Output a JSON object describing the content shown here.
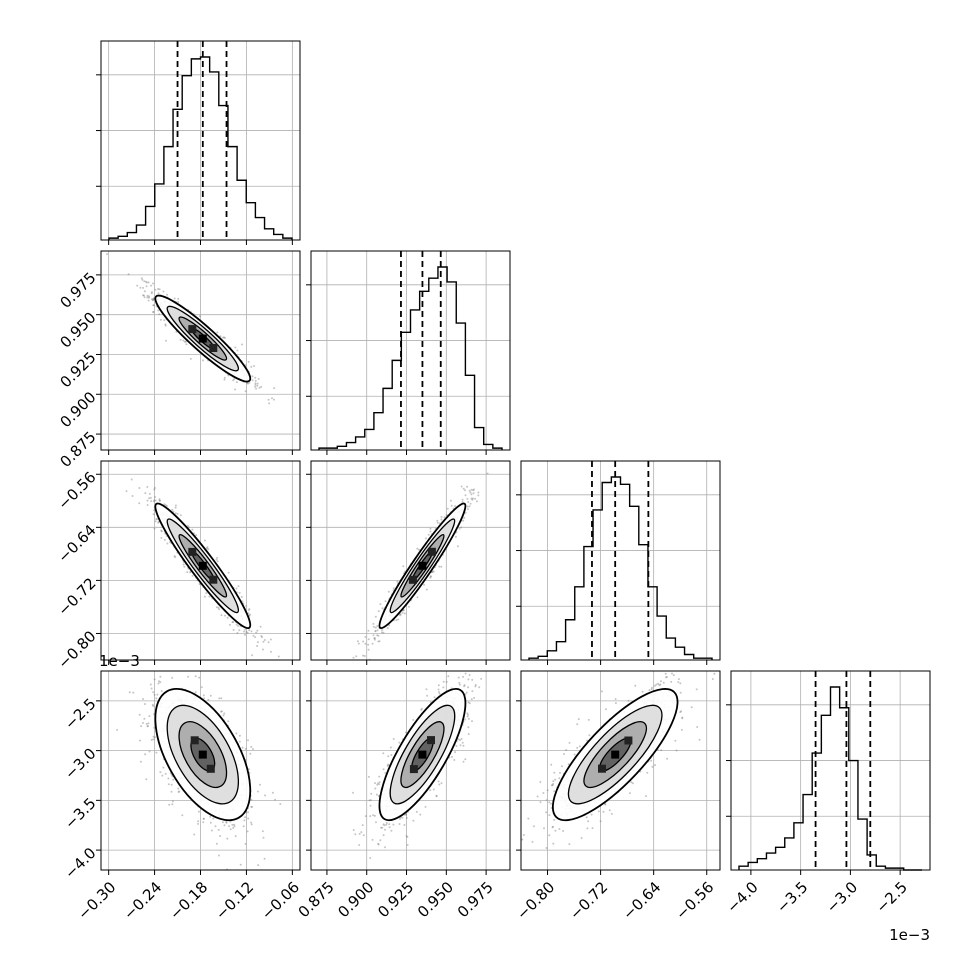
{
  "chart_data": {
    "type": "corner",
    "parameters": 4,
    "axes": [
      {
        "lim": [
          -0.31,
          -0.05
        ],
        "ticks": [
          -0.3,
          -0.24,
          -0.18,
          -0.12,
          -0.06
        ],
        "tick_labels": [
          "−0.30",
          "−0.24",
          "−0.18",
          "−0.12",
          "−0.06"
        ],
        "offset_text": "",
        "quantiles": [
          -0.21,
          -0.177,
          -0.146
        ]
      },
      {
        "lim": [
          0.865,
          0.99
        ],
        "ticks": [
          0.875,
          0.9,
          0.925,
          0.95,
          0.975
        ],
        "tick_labels": [
          "0.875",
          "0.900",
          "0.925",
          "0.950",
          "0.975"
        ],
        "offset_text": "",
        "quantiles": [
          0.9215,
          0.935,
          0.9465
        ]
      },
      {
        "lim": [
          -0.84,
          -0.54
        ],
        "ticks": [
          -0.8,
          -0.72,
          -0.64,
          -0.56
        ],
        "tick_labels": [
          "−0.80",
          "−0.72",
          "−0.64",
          "−0.56"
        ],
        "offset_text": "",
        "quantiles": [
          -0.733,
          -0.698,
          -0.648
        ]
      },
      {
        "lim": [
          -4.2,
          -2.2
        ],
        "ticks": [
          -4.0,
          -3.5,
          -3.0,
          -2.5
        ],
        "tick_labels": [
          "−4.0",
          "−3.5",
          "−3.0",
          "−2.5"
        ],
        "offset_text": "1e−3",
        "quantiles": [
          -3.35,
          -3.04,
          -2.8
        ]
      }
    ],
    "histograms": [
      {
        "counts": [
          1,
          2,
          4,
          8,
          18,
          30,
          50,
          70,
          88,
          97,
          98,
          90,
          72,
          50,
          32,
          20,
          12,
          6,
          3,
          1
        ]
      },
      {
        "counts": [
          1,
          1,
          2,
          4,
          7,
          11,
          20,
          33,
          48,
          63,
          75,
          85,
          92,
          98,
          90,
          68,
          40,
          12,
          3,
          1
        ]
      },
      {
        "counts": [
          1,
          2,
          5,
          10,
          22,
          40,
          62,
          82,
          97,
          100,
          96,
          84,
          63,
          40,
          24,
          12,
          7,
          3,
          1,
          1
        ]
      },
      {
        "counts": [
          2,
          4,
          6,
          9,
          12,
          17,
          25,
          40,
          62,
          82,
          97,
          86,
          58,
          27,
          8,
          2,
          1,
          1,
          0,
          0
        ]
      }
    ],
    "pairs": [
      {
        "x": 0,
        "y": 1,
        "mean": [
          -0.177,
          0.935
        ],
        "std": [
          0.031,
          0.0135
        ],
        "corr": -0.93
      },
      {
        "x": 0,
        "y": 2,
        "mean": [
          -0.177,
          -0.698
        ],
        "std": [
          0.031,
          0.047
        ],
        "corr": -0.95
      },
      {
        "x": 1,
        "y": 2,
        "mean": [
          0.935,
          -0.698
        ],
        "std": [
          0.0135,
          0.047
        ],
        "corr": 0.96
      },
      {
        "x": 0,
        "y": 3,
        "mean": [
          -0.177,
          -3.04
        ],
        "std": [
          0.031,
          0.33
        ],
        "corr": -0.55
      },
      {
        "x": 1,
        "y": 3,
        "mean": [
          0.935,
          -3.04
        ],
        "std": [
          0.0135,
          0.33
        ],
        "corr": 0.78
      },
      {
        "x": 2,
        "y": 3,
        "mean": [
          -0.698,
          -3.04
        ],
        "std": [
          0.047,
          0.33
        ],
        "corr": 0.8
      }
    ],
    "contour_levels_sigma": [
      0.5,
      1.0,
      1.5,
      2.0
    ],
    "grid": true,
    "colors": {
      "frame": "#000000",
      "grid": "#b0b0b0",
      "points": "#7f7f7f",
      "hist": "#000000"
    }
  }
}
